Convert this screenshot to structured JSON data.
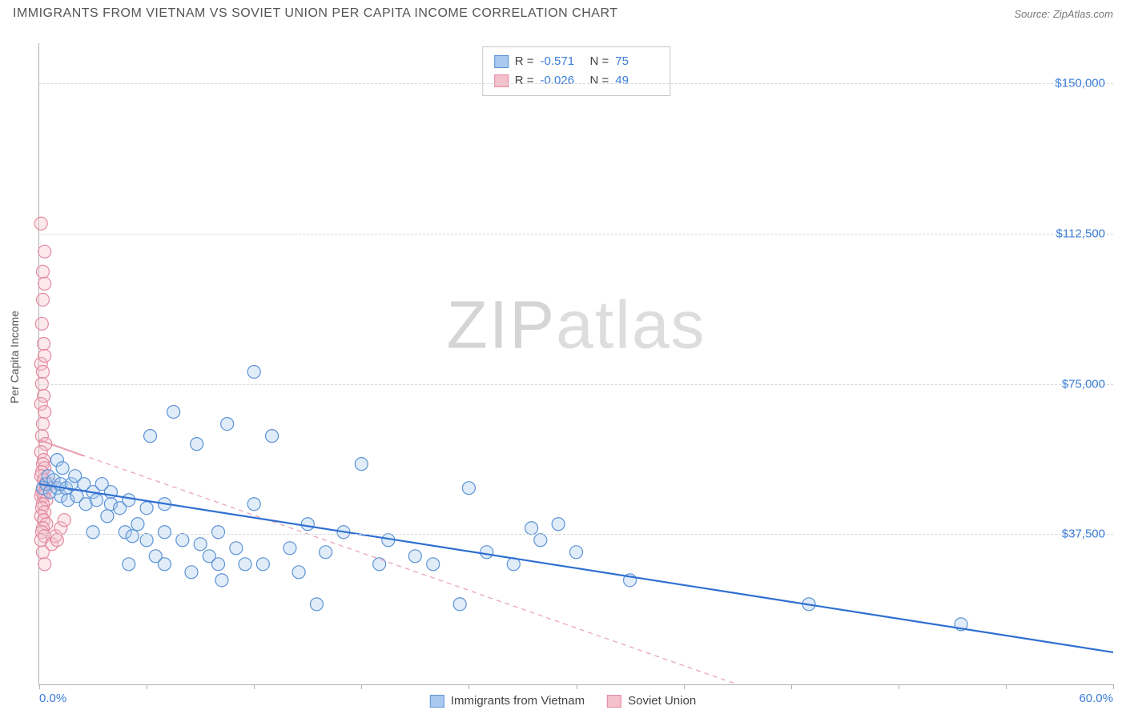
{
  "header": {
    "title": "IMMIGRANTS FROM VIETNAM VS SOVIET UNION PER CAPITA INCOME CORRELATION CHART",
    "source_prefix": "Source: ",
    "source_name": "ZipAtlas.com"
  },
  "watermark": {
    "part1": "ZIP",
    "part2": "atlas"
  },
  "chart": {
    "type": "scatter",
    "y_axis_label": "Per Capita Income",
    "background_color": "#ffffff",
    "grid_color": "#d8d8d8",
    "axis_color": "#b0b0b0",
    "xlim": [
      0,
      60
    ],
    "ylim": [
      0,
      160000
    ],
    "xtick_labels": {
      "0": "0.0%",
      "60": "60.0%"
    },
    "xtick_positions": [
      0,
      6,
      12,
      18,
      24,
      30,
      36,
      42,
      48,
      54,
      60
    ],
    "ytick_labels": {
      "37500": "$37,500",
      "75000": "$75,000",
      "112500": "$112,500",
      "150000": "$150,000"
    },
    "ytick_positions": [
      37500,
      75000,
      112500,
      150000
    ],
    "marker_radius": 8,
    "marker_stroke_width": 1.2,
    "fill_opacity": 0.35,
    "series": [
      {
        "key": "vietnam",
        "label": "Immigrants from Vietnam",
        "color_fill": "#a9c8ef",
        "color_stroke": "#5b93d6",
        "trend_color": "#2f6fd0",
        "trend_width": 2.2,
        "trend_dash": "none",
        "R": "-0.571",
        "N": "75",
        "trend": {
          "x1": 0,
          "y1": 50000,
          "x2": 60,
          "y2": 8000
        },
        "points": [
          [
            0.2,
            49000
          ],
          [
            0.4,
            50000
          ],
          [
            0.5,
            52000
          ],
          [
            0.6,
            48000
          ],
          [
            0.8,
            51000
          ],
          [
            1.0,
            49000
          ],
          [
            1.0,
            56000
          ],
          [
            1.2,
            47000
          ],
          [
            1.2,
            50000
          ],
          [
            1.3,
            54000
          ],
          [
            1.5,
            49000
          ],
          [
            1.6,
            46000
          ],
          [
            1.8,
            50000
          ],
          [
            2.0,
            52000
          ],
          [
            2.1,
            47000
          ],
          [
            2.5,
            50000
          ],
          [
            2.6,
            45000
          ],
          [
            3.0,
            48000
          ],
          [
            3.0,
            38000
          ],
          [
            3.2,
            46000
          ],
          [
            3.5,
            50000
          ],
          [
            3.8,
            42000
          ],
          [
            4.0,
            48000
          ],
          [
            4.0,
            45000
          ],
          [
            4.5,
            44000
          ],
          [
            4.8,
            38000
          ],
          [
            5.0,
            46000
          ],
          [
            5.0,
            30000
          ],
          [
            5.2,
            37000
          ],
          [
            5.5,
            40000
          ],
          [
            6.0,
            44000
          ],
          [
            6.0,
            36000
          ],
          [
            6.2,
            62000
          ],
          [
            6.5,
            32000
          ],
          [
            7.0,
            38000
          ],
          [
            7.0,
            30000
          ],
          [
            7.0,
            45000
          ],
          [
            7.5,
            68000
          ],
          [
            8.0,
            36000
          ],
          [
            8.5,
            28000
          ],
          [
            8.8,
            60000
          ],
          [
            9.0,
            35000
          ],
          [
            9.5,
            32000
          ],
          [
            10.0,
            38000
          ],
          [
            10.0,
            30000
          ],
          [
            10.2,
            26000
          ],
          [
            10.5,
            65000
          ],
          [
            11.0,
            34000
          ],
          [
            11.5,
            30000
          ],
          [
            12.0,
            45000
          ],
          [
            12.0,
            78000
          ],
          [
            12.5,
            30000
          ],
          [
            13.0,
            62000
          ],
          [
            14.0,
            34000
          ],
          [
            14.5,
            28000
          ],
          [
            15.0,
            40000
          ],
          [
            15.5,
            20000
          ],
          [
            16.0,
            33000
          ],
          [
            17.0,
            38000
          ],
          [
            18.0,
            55000
          ],
          [
            19.0,
            30000
          ],
          [
            19.5,
            36000
          ],
          [
            21.0,
            32000
          ],
          [
            22.0,
            30000
          ],
          [
            23.5,
            20000
          ],
          [
            24.0,
            49000
          ],
          [
            25.0,
            33000
          ],
          [
            26.5,
            30000
          ],
          [
            27.5,
            39000
          ],
          [
            28.0,
            36000
          ],
          [
            29.0,
            40000
          ],
          [
            30.0,
            33000
          ],
          [
            33.0,
            26000
          ],
          [
            43.0,
            20000
          ],
          [
            51.5,
            15000
          ]
        ]
      },
      {
        "key": "soviet",
        "label": "Soviet Union",
        "color_fill": "#f4c0cb",
        "color_stroke": "#e48aa0",
        "trend_color": "#e8a0b2",
        "trend_width": 1.2,
        "trend_dash": "6,5",
        "R": "-0.026",
        "N": "49",
        "trend": {
          "x1": 0,
          "y1": 61000,
          "x2": 39,
          "y2": 0
        },
        "points": [
          [
            0.1,
            115000
          ],
          [
            0.2,
            103000
          ],
          [
            0.3,
            108000
          ],
          [
            0.3,
            100000
          ],
          [
            0.2,
            96000
          ],
          [
            0.15,
            90000
          ],
          [
            0.25,
            85000
          ],
          [
            0.1,
            80000
          ],
          [
            0.3,
            82000
          ],
          [
            0.2,
            78000
          ],
          [
            0.15,
            75000
          ],
          [
            0.25,
            72000
          ],
          [
            0.1,
            70000
          ],
          [
            0.3,
            68000
          ],
          [
            0.2,
            65000
          ],
          [
            0.15,
            62000
          ],
          [
            0.35,
            60000
          ],
          [
            0.1,
            58000
          ],
          [
            0.25,
            56000
          ],
          [
            0.2,
            55000
          ],
          [
            0.3,
            54000
          ],
          [
            0.15,
            53000
          ],
          [
            0.1,
            52000
          ],
          [
            0.25,
            51000
          ],
          [
            0.35,
            50000
          ],
          [
            0.6,
            50000
          ],
          [
            0.2,
            49000
          ],
          [
            0.15,
            48000
          ],
          [
            0.3,
            48000
          ],
          [
            0.1,
            47000
          ],
          [
            0.25,
            47000
          ],
          [
            0.4,
            46000
          ],
          [
            0.2,
            45000
          ],
          [
            0.15,
            44000
          ],
          [
            0.3,
            43000
          ],
          [
            0.1,
            42000
          ],
          [
            0.25,
            41000
          ],
          [
            0.4,
            40000
          ],
          [
            0.2,
            39000
          ],
          [
            0.15,
            38000
          ],
          [
            0.3,
            37000
          ],
          [
            0.1,
            36000
          ],
          [
            0.7,
            35000
          ],
          [
            0.9,
            37000
          ],
          [
            1.0,
            36000
          ],
          [
            1.2,
            39000
          ],
          [
            1.4,
            41000
          ],
          [
            0.2,
            33000
          ],
          [
            0.3,
            30000
          ]
        ]
      }
    ],
    "stats_box": {
      "R_label": "R =",
      "N_label": "N ="
    }
  }
}
